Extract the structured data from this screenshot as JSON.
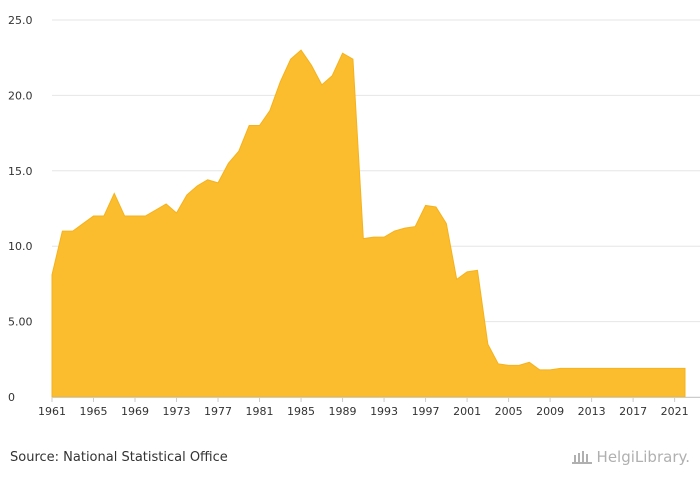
{
  "chart_data": {
    "type": "area",
    "x": [
      1961,
      1962,
      1963,
      1964,
      1965,
      1966,
      1967,
      1968,
      1969,
      1970,
      1971,
      1972,
      1973,
      1974,
      1975,
      1976,
      1977,
      1978,
      1979,
      1980,
      1981,
      1982,
      1983,
      1984,
      1985,
      1986,
      1987,
      1988,
      1989,
      1990,
      1991,
      1992,
      1993,
      1994,
      1995,
      1996,
      1997,
      1998,
      1999,
      2000,
      2001,
      2002,
      2003,
      2004,
      2005,
      2006,
      2007,
      2008,
      2009,
      2010,
      2011,
      2012,
      2013,
      2014,
      2015,
      2016,
      2017,
      2018,
      2019,
      2020,
      2021,
      2022
    ],
    "series": [
      {
        "values": [
          8.1,
          11.0,
          11.0,
          11.5,
          12.0,
          12.0,
          13.5,
          12.0,
          12.0,
          12.0,
          12.4,
          12.8,
          12.2,
          13.4,
          14.0,
          14.4,
          14.2,
          15.5,
          16.3,
          18.0,
          18.0,
          19.0,
          20.9,
          22.4,
          23.0,
          22.0,
          20.7,
          21.3,
          22.8,
          22.4,
          10.5,
          10.6,
          10.6,
          11.0,
          11.2,
          11.3,
          12.7,
          12.6,
          11.5,
          7.8,
          8.3,
          8.4,
          3.5,
          2.2,
          2.1,
          2.1,
          2.3,
          1.8,
          1.8,
          1.9,
          1.9,
          1.9,
          1.9,
          1.9,
          1.9,
          1.9,
          1.9,
          1.9,
          1.9,
          1.9,
          1.9,
          1.9
        ],
        "color": "#fbbc2e"
      }
    ],
    "y_tick_labels": [
      "0",
      "5.00",
      "10.0",
      "15.0",
      "20.0",
      "25.0"
    ],
    "y_ticks": [
      0,
      5,
      10,
      15,
      20,
      25
    ],
    "x_tick_labels": [
      "1961",
      "1965",
      "1969",
      "1973",
      "1977",
      "1981",
      "1985",
      "1989",
      "1993",
      "1997",
      "2001",
      "2005",
      "2009",
      "2013",
      "2017",
      "2021"
    ],
    "ylim": [
      0,
      25
    ],
    "xlim": [
      1961,
      2022
    ],
    "grid": true,
    "gridColor": "#e6e6e6",
    "axisColor": "#cccccc"
  },
  "footer": {
    "source": "Source: National Statistical Office",
    "brand": "HelgiLibrary.",
    "brand_icon": "library-building-icon"
  }
}
